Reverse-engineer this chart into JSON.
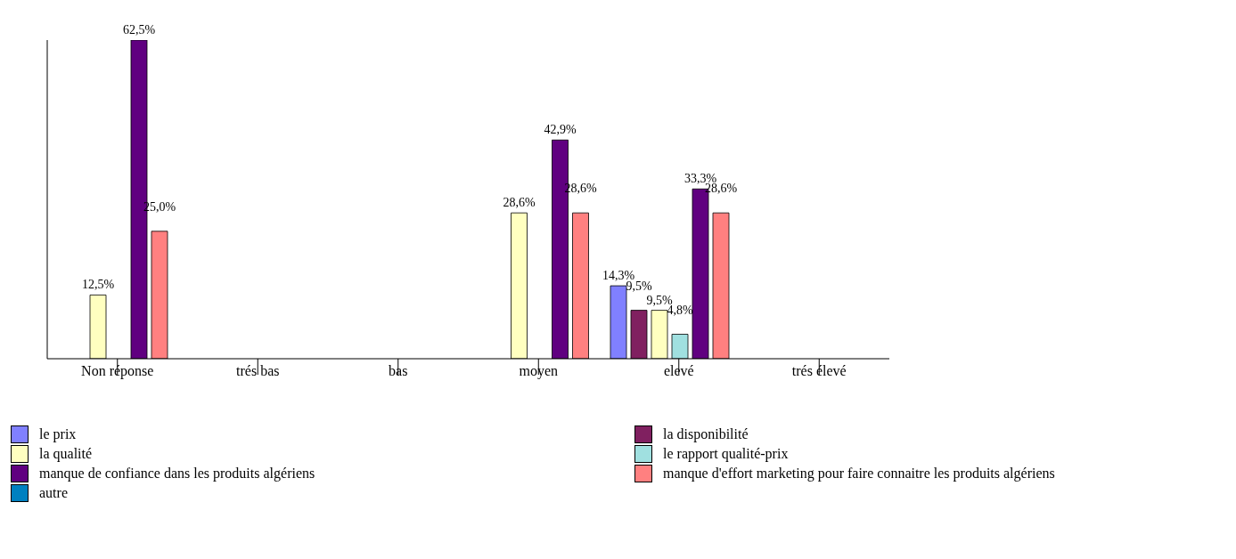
{
  "chart_data": {
    "type": "bar",
    "categories": [
      "Non réponse",
      "trés bas",
      "bas",
      "moyen",
      "elevé",
      "trés élevé"
    ],
    "series": [
      {
        "name": "le prix",
        "color": "#8080ff",
        "values": [
          null,
          null,
          null,
          null,
          14.3,
          null
        ],
        "value_labels": [
          null,
          null,
          null,
          null,
          "14,3%",
          null
        ]
      },
      {
        "name": "la disponibilité",
        "color": "#802060",
        "values": [
          null,
          null,
          null,
          null,
          9.5,
          null
        ],
        "value_labels": [
          null,
          null,
          null,
          null,
          "9,5%",
          null
        ]
      },
      {
        "name": "la qualité",
        "color": "#ffffc0",
        "values": [
          12.5,
          null,
          null,
          28.6,
          9.5,
          null
        ],
        "value_labels": [
          "12,5%",
          null,
          null,
          "28,6%",
          "9,5%",
          null
        ]
      },
      {
        "name": "le rapport qualité-prix",
        "color": "#a0e0e0",
        "values": [
          null,
          null,
          null,
          null,
          4.8,
          null
        ],
        "value_labels": [
          null,
          null,
          null,
          null,
          "4,8%",
          null
        ]
      },
      {
        "name": "manque de confiance dans les produits algériens",
        "color": "#600080",
        "values": [
          62.5,
          null,
          null,
          42.9,
          33.3,
          null
        ],
        "value_labels": [
          "62,5%",
          null,
          null,
          "42,9%",
          "33,3%",
          null
        ]
      },
      {
        "name": "manque d'effort marketing pour faire connaitre les produits algériens",
        "color": "#ff8080",
        "values": [
          25.0,
          null,
          null,
          28.6,
          28.6,
          null
        ],
        "value_labels": [
          "25,0%",
          null,
          null,
          "28,6%",
          "28,6%",
          null
        ]
      },
      {
        "name": "autre",
        "color": "#0080c0",
        "values": [
          null,
          null,
          null,
          null,
          null,
          null
        ],
        "value_labels": [
          null,
          null,
          null,
          null,
          null,
          null
        ]
      }
    ],
    "legend": "bottom"
  }
}
